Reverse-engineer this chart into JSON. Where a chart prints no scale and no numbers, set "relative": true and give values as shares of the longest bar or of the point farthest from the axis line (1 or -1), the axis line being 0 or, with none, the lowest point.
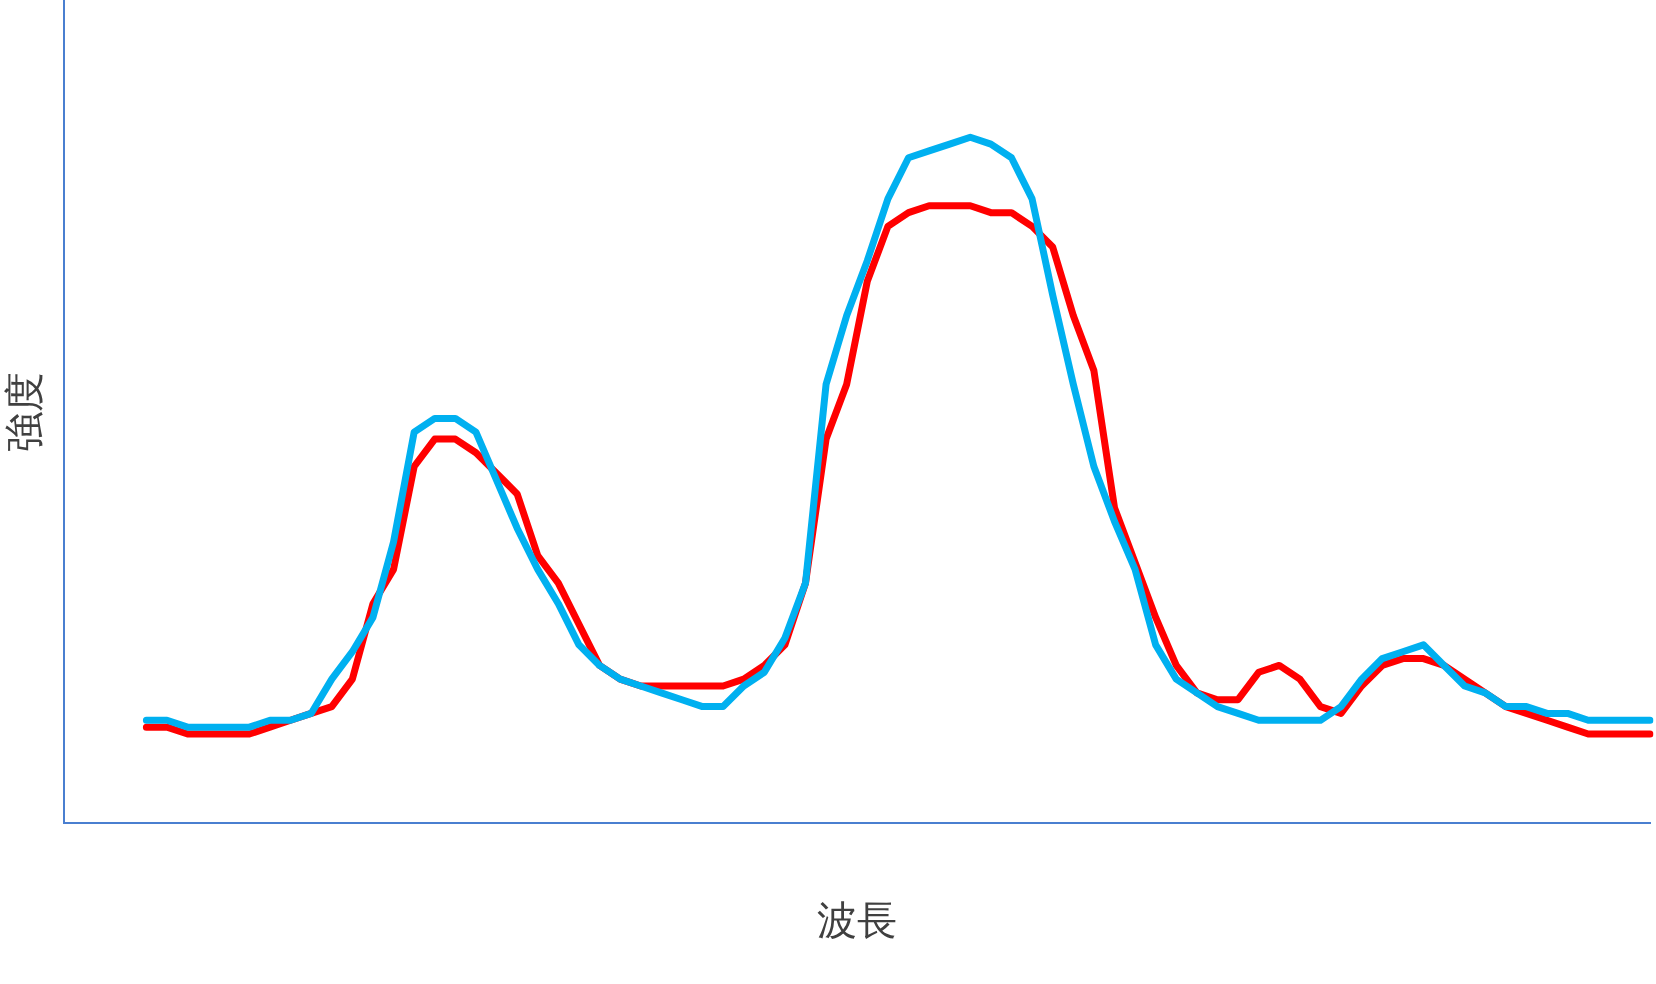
{
  "chart_data": {
    "type": "line",
    "xlabel": "波長",
    "ylabel": "強度",
    "relative": true,
    "grid": false,
    "legend": false,
    "marker": "none",
    "line_style": "solid",
    "categories": [
      null,
      null,
      null,
      null,
      null,
      null,
      null,
      null,
      null,
      null,
      null,
      null,
      null,
      null,
      null,
      null,
      null,
      null,
      null,
      null,
      null,
      null,
      null,
      null,
      null,
      null,
      null,
      null,
      null,
      null,
      null,
      null,
      null,
      null,
      null,
      null,
      null,
      null,
      null,
      null,
      null,
      null,
      null,
      null,
      null,
      null,
      null,
      null,
      null,
      null,
      null,
      null,
      null,
      null,
      null,
      null,
      null,
      null,
      null,
      null,
      null,
      null,
      null,
      null,
      null,
      null,
      null,
      null,
      null,
      null,
      null,
      null,
      null,
      null,
      null,
      null,
      null,
      null
    ],
    "series": [
      {
        "color": "#00b0f0",
        "values": [
          null,
          null,
          null,
          null,
          0.15,
          0.15,
          0.14,
          0.14,
          0.14,
          0.14,
          0.15,
          0.15,
          0.16,
          0.21,
          0.25,
          0.3,
          0.41,
          0.57,
          0.59,
          0.59,
          0.57,
          0.5,
          0.43,
          0.37,
          0.32,
          0.26,
          0.23,
          0.21,
          0.2,
          0.19,
          0.18,
          0.17,
          0.17,
          0.2,
          0.22,
          0.27,
          0.35,
          0.64,
          0.74,
          0.82,
          0.91,
          0.97,
          0.98,
          0.99,
          1.0,
          0.99,
          0.97,
          0.91,
          0.77,
          0.64,
          0.52,
          0.44,
          0.37,
          0.26,
          0.21,
          0.19,
          0.17,
          0.16,
          0.15,
          0.15,
          0.15,
          0.15,
          0.17,
          0.21,
          0.24,
          0.25,
          0.26,
          0.23,
          0.2,
          0.19,
          0.17,
          0.17,
          0.16,
          0.16,
          0.15,
          0.15,
          0.15,
          0.15
        ]
      },
      {
        "color": "#ff0000",
        "values": [
          null,
          null,
          null,
          null,
          0.14,
          0.14,
          0.13,
          0.13,
          0.13,
          0.13,
          0.14,
          0.15,
          0.16,
          0.17,
          0.21,
          0.32,
          0.37,
          0.52,
          0.56,
          0.56,
          0.54,
          0.51,
          0.48,
          0.39,
          0.35,
          0.29,
          0.23,
          0.21,
          0.2,
          0.2,
          0.2,
          0.2,
          0.2,
          0.21,
          0.23,
          0.26,
          0.35,
          0.56,
          0.64,
          0.79,
          0.87,
          0.89,
          0.9,
          0.9,
          0.9,
          0.89,
          0.89,
          0.87,
          0.84,
          0.74,
          0.66,
          0.46,
          0.38,
          0.3,
          0.23,
          0.19,
          0.18,
          0.18,
          0.22,
          0.23,
          0.21,
          0.17,
          0.16,
          0.2,
          0.23,
          0.24,
          0.24,
          0.23,
          0.21,
          0.19,
          0.17,
          0.16,
          0.15,
          0.14,
          0.13,
          0.13,
          0.13,
          0.13
        ]
      }
    ]
  }
}
